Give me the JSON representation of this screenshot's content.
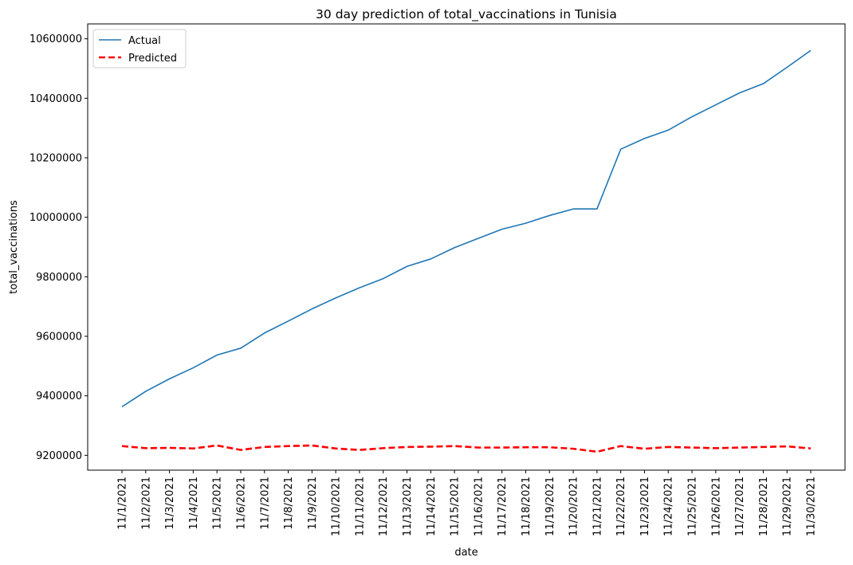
{
  "chart_data": {
    "type": "line",
    "title": "30 day prediction of total_vaccinations in Tunisia",
    "xlabel": "date",
    "ylabel": "total_vaccinations",
    "ylim": [
      9150000,
      10650000
    ],
    "yticks": [
      9200000,
      9400000,
      9600000,
      9800000,
      10000000,
      10200000,
      10400000,
      10600000
    ],
    "legend_position": "top-left",
    "grid": false,
    "x": [
      "11/1/2021",
      "11/2/2021",
      "11/3/2021",
      "11/4/2021",
      "11/5/2021",
      "11/6/2021",
      "11/7/2021",
      "11/8/2021",
      "11/9/2021",
      "11/10/2021",
      "11/11/2021",
      "11/12/2021",
      "11/13/2021",
      "11/14/2021",
      "11/15/2021",
      "11/16/2021",
      "11/17/2021",
      "11/18/2021",
      "11/19/2021",
      "11/20/2021",
      "11/21/2021",
      "11/22/2021",
      "11/23/2021",
      "11/24/2021",
      "11/25/2021",
      "11/26/2021",
      "11/27/2021",
      "11/28/2021",
      "11/29/2021",
      "11/30/2021"
    ],
    "series": [
      {
        "name": "Actual",
        "color": "#1f77b4",
        "style": "solid",
        "values": [
          9363000,
          9415000,
          9457000,
          9494000,
          9537000,
          9560000,
          9611000,
          9651000,
          9692000,
          9729000,
          9763000,
          9794000,
          9835000,
          9860000,
          9898000,
          9929000,
          9960000,
          9980000,
          10006000,
          10028000,
          10028000,
          10229000,
          10265000,
          10293000,
          10338000,
          10378000,
          10418000,
          10449000,
          10504000,
          10561000
        ]
      },
      {
        "name": "Predicted",
        "color": "#ff0000",
        "style": "dashed",
        "values": [
          9231000,
          9224000,
          9225000,
          9223000,
          9233000,
          9218000,
          9228000,
          9231000,
          9233000,
          9223000,
          9218000,
          9224000,
          9228000,
          9229000,
          9231000,
          9226000,
          9226000,
          9227000,
          9227000,
          9222000,
          9212000,
          9231000,
          9222000,
          9228000,
          9226000,
          9224000,
          9226000,
          9228000,
          9230000,
          9223000
        ]
      }
    ]
  }
}
